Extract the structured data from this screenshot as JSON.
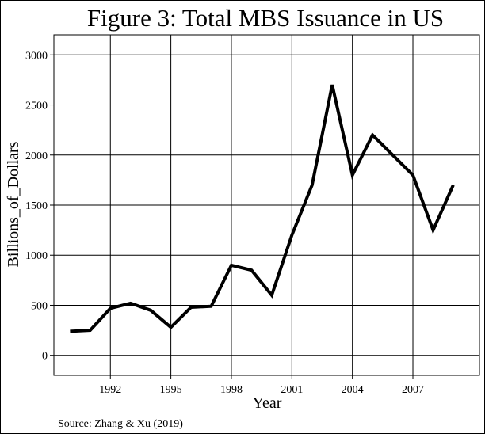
{
  "chart_data": {
    "type": "line",
    "title": "Figure 3: Total MBS Issuance in US",
    "xlabel": "Year",
    "ylabel": "Billions_of_Dollars",
    "source_note": "Source: Zhang & Xu (2019)",
    "x_tick_labels": [
      "1992",
      "1995",
      "1998",
      "2001",
      "2004",
      "2007"
    ],
    "x_ticks": [
      1992,
      1995,
      1998,
      2001,
      2004,
      2007
    ],
    "y_tick_labels": [
      "0",
      "500",
      "1000",
      "1500",
      "2000",
      "2500",
      "3000"
    ],
    "y_ticks": [
      0,
      500,
      1000,
      1500,
      2000,
      2500,
      3000
    ],
    "xlim": [
      1989.2,
      2010.3
    ],
    "ylim": [
      -200,
      3200
    ],
    "grid": true,
    "legend": "none",
    "line_color": "#000000",
    "series": [
      {
        "x": [
          1990,
          1991,
          1992,
          1993,
          1994,
          1995,
          1996,
          1997,
          1998,
          1999,
          2000,
          2001,
          2002,
          2003,
          2004,
          2005,
          2006,
          2007,
          2008,
          2009
        ],
        "values": [
          240,
          250,
          470,
          520,
          450,
          280,
          480,
          490,
          900,
          850,
          600,
          1200,
          1700,
          2700,
          1800,
          2200,
          2000,
          1800,
          1250,
          1700
        ]
      }
    ]
  }
}
